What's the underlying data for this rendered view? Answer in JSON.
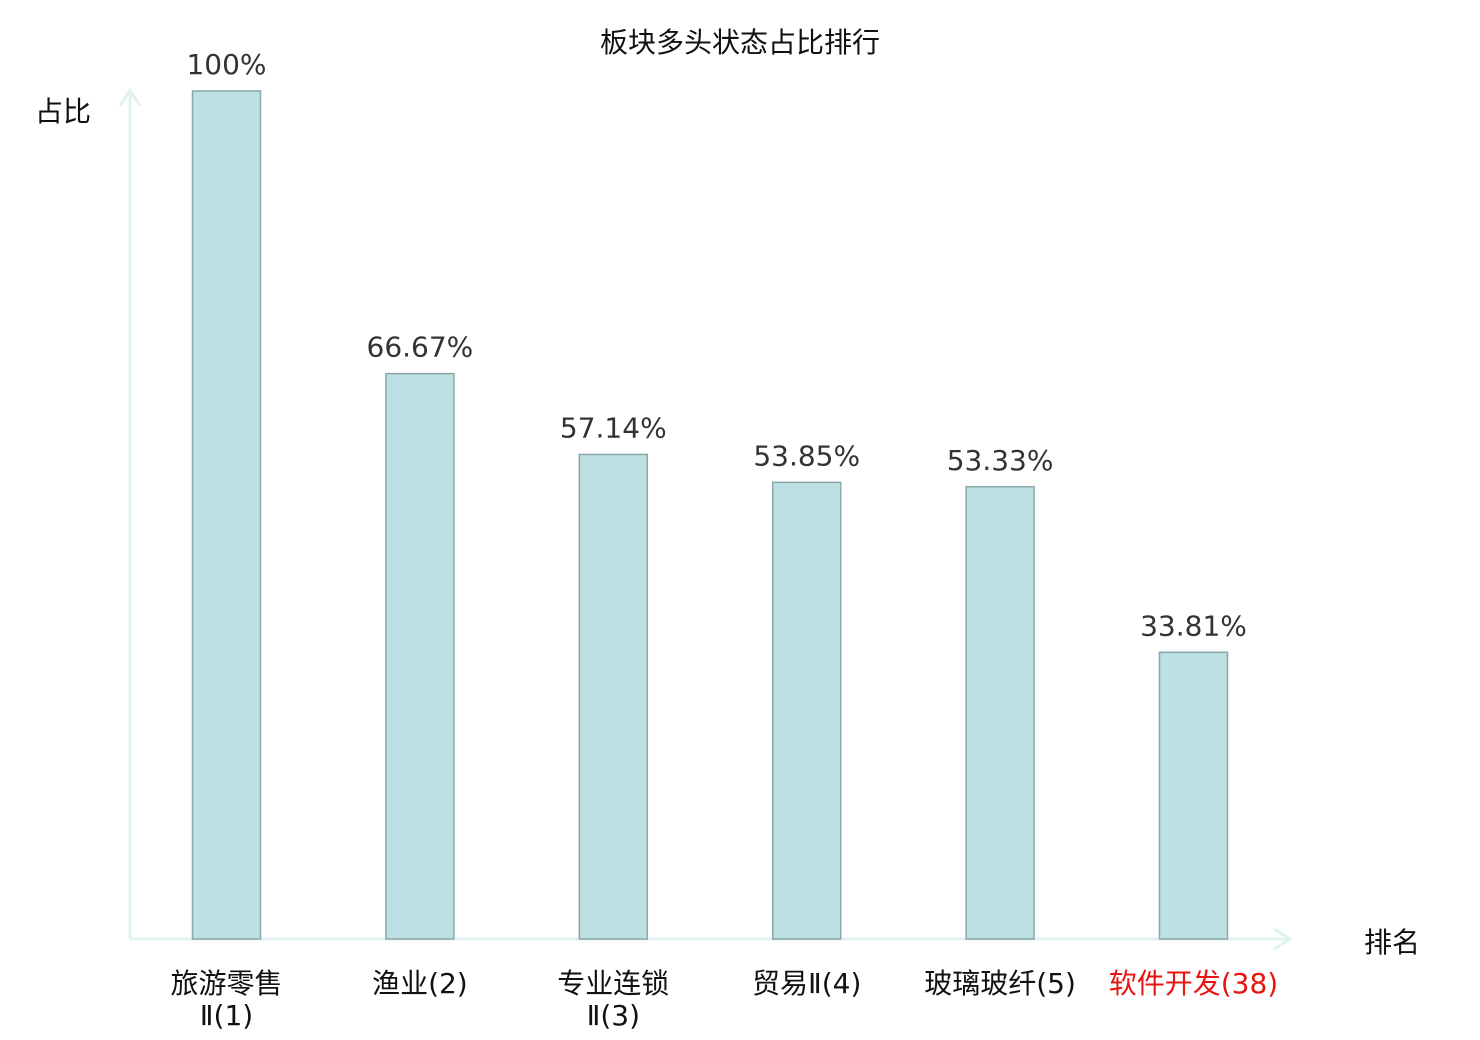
{
  "chart_data": {
    "type": "bar",
    "title": "板块多头状态占比排行",
    "xlabel": "排名",
    "ylabel": "占比",
    "categories": [
      [
        "旅游零售",
        "Ⅱ(1)"
      ],
      [
        "渔业(2)"
      ],
      [
        "专业连锁",
        "Ⅱ(3)"
      ],
      [
        "贸易Ⅱ(4)"
      ],
      [
        "玻璃玻纤(5)"
      ],
      [
        "软件开发(38)"
      ]
    ],
    "values": [
      100,
      66.67,
      57.14,
      53.85,
      53.33,
      33.81
    ],
    "value_labels": [
      "100%",
      "66.67%",
      "57.14%",
      "53.85%",
      "53.33%",
      "33.81%"
    ],
    "highlight_index": 5,
    "ylim": [
      0,
      100
    ],
    "grid": false,
    "colors": {
      "bar_fill": "#bce0e3",
      "bar_stroke": "#8aa8aa",
      "axis": "#e0f3f1",
      "highlight_label": "#e8140f",
      "text": "#333333"
    }
  }
}
